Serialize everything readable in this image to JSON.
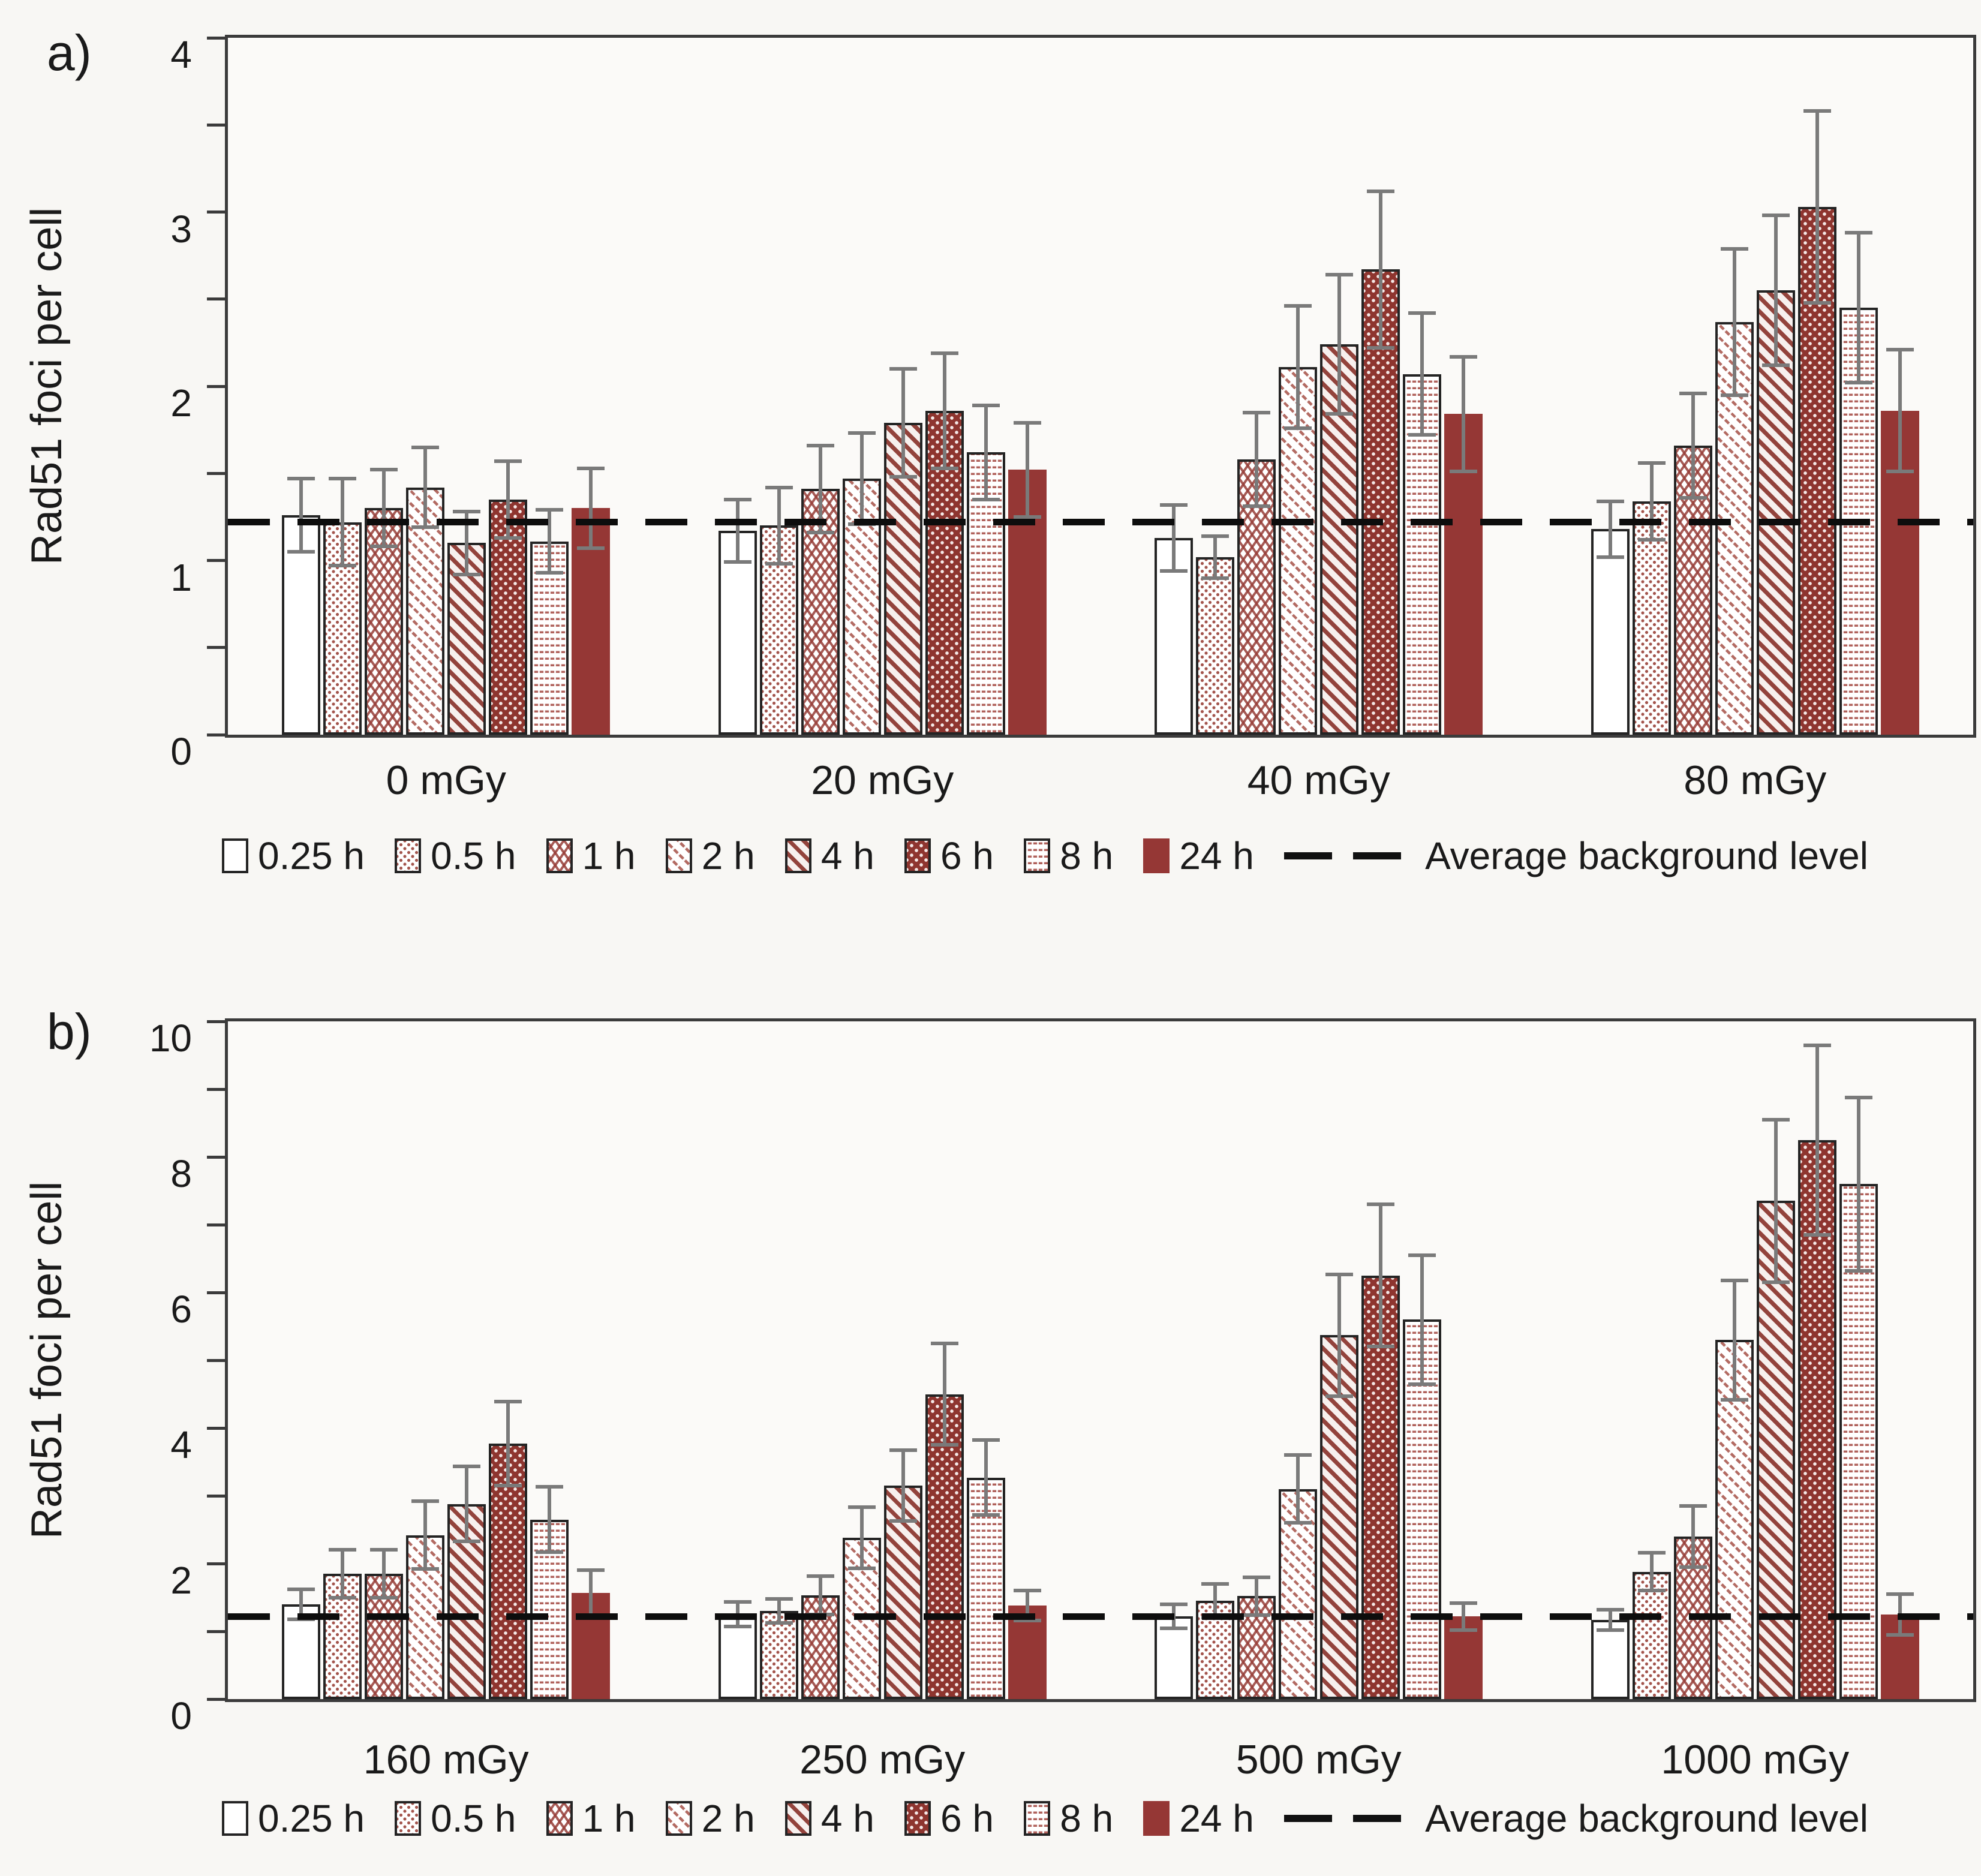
{
  "figure": {
    "panel_letters": [
      "a)",
      "b)"
    ]
  },
  "colors": {
    "dark_red": "#953735",
    "pattern_red": "#a0524a",
    "error_bar_gray": "#7a7a7a",
    "axis_color": "#3b3b3b",
    "text_color": "#1a1a1a",
    "dashed_line_black": "#0d0d0d",
    "background": "#f8f7f4"
  },
  "legend": {
    "line_label": "Average background level"
  },
  "chart_data": [
    {
      "type": "bar",
      "panel_label": "a)",
      "title": "",
      "xlabel": "",
      "ylabel": "Rad51 foci per cell",
      "ylim": [
        0,
        4
      ],
      "ytick_labels": [
        "0",
        "1",
        "2",
        "3",
        "4"
      ],
      "ytick_step": 1,
      "yminor_step": 0.5,
      "grid": false,
      "legend_position": "bottom",
      "categories": [
        "0 mGy",
        "20 mGy",
        "40 mGy",
        "80 mGy"
      ],
      "series": [
        {
          "name": "0.25 h",
          "values": [
            1.26,
            1.17,
            1.13,
            1.18
          ],
          "errors": [
            0.21,
            0.18,
            0.19,
            0.16
          ]
        },
        {
          "name": "0.5 h",
          "values": [
            1.22,
            1.2,
            1.02,
            1.34
          ],
          "errors": [
            0.25,
            0.22,
            0.12,
            0.22
          ]
        },
        {
          "name": "1 h",
          "values": [
            1.3,
            1.41,
            1.58,
            1.66
          ],
          "errors": [
            0.22,
            0.25,
            0.27,
            0.3
          ]
        },
        {
          "name": "2 h",
          "values": [
            1.42,
            1.47,
            2.11,
            2.37
          ],
          "errors": [
            0.23,
            0.26,
            0.35,
            0.42
          ]
        },
        {
          "name": "4 h",
          "values": [
            1.1,
            1.79,
            2.24,
            2.55
          ],
          "errors": [
            0.18,
            0.31,
            0.4,
            0.43
          ]
        },
        {
          "name": "6 h",
          "values": [
            1.35,
            1.86,
            2.67,
            3.03
          ],
          "errors": [
            0.22,
            0.33,
            0.45,
            0.55
          ]
        },
        {
          "name": "8 h",
          "values": [
            1.11,
            1.62,
            2.07,
            2.45
          ],
          "errors": [
            0.18,
            0.27,
            0.35,
            0.43
          ]
        },
        {
          "name": "24 h",
          "values": [
            1.3,
            1.52,
            1.84,
            1.86
          ],
          "errors": [
            0.23,
            0.27,
            0.33,
            0.35
          ]
        }
      ],
      "background_line": {
        "label": "Average background level",
        "value": 1.22
      }
    },
    {
      "type": "bar",
      "panel_label": "b)",
      "title": "",
      "xlabel": "",
      "ylabel": "Rad51 foci per cell",
      "ylim": [
        0,
        10
      ],
      "ytick_labels": [
        "0",
        "2",
        "4",
        "6",
        "8",
        "10"
      ],
      "ytick_step": 2,
      "yminor_step": 1,
      "grid": false,
      "legend_position": "bottom",
      "categories": [
        "160 mGy",
        "250 mGy",
        "500 mGy",
        "1000 mGy"
      ],
      "series": [
        {
          "name": "0.25 h",
          "values": [
            1.4,
            1.25,
            1.22,
            1.17
          ],
          "errors": [
            0.22,
            0.18,
            0.18,
            0.15
          ]
        },
        {
          "name": "0.5 h",
          "values": [
            1.85,
            1.3,
            1.45,
            1.88
          ],
          "errors": [
            0.35,
            0.18,
            0.25,
            0.28
          ]
        },
        {
          "name": "1 h",
          "values": [
            1.85,
            1.53,
            1.52,
            2.4
          ],
          "errors": [
            0.35,
            0.28,
            0.28,
            0.45
          ]
        },
        {
          "name": "2 h",
          "values": [
            2.42,
            2.38,
            3.1,
            5.3
          ],
          "errors": [
            0.5,
            0.45,
            0.5,
            0.88
          ]
        },
        {
          "name": "4 h",
          "values": [
            2.88,
            3.15,
            5.37,
            7.35
          ],
          "errors": [
            0.55,
            0.52,
            0.9,
            1.2
          ]
        },
        {
          "name": "6 h",
          "values": [
            3.77,
            4.5,
            6.25,
            8.25
          ],
          "errors": [
            0.62,
            0.75,
            1.05,
            1.4
          ]
        },
        {
          "name": "8 h",
          "values": [
            2.65,
            3.27,
            5.6,
            7.6
          ],
          "errors": [
            0.48,
            0.55,
            0.95,
            1.28
          ]
        },
        {
          "name": "24 h",
          "values": [
            1.57,
            1.38,
            1.22,
            1.25
          ],
          "errors": [
            0.33,
            0.22,
            0.2,
            0.3
          ]
        }
      ],
      "background_line": {
        "label": "Average background level",
        "value": 1.22
      }
    }
  ]
}
